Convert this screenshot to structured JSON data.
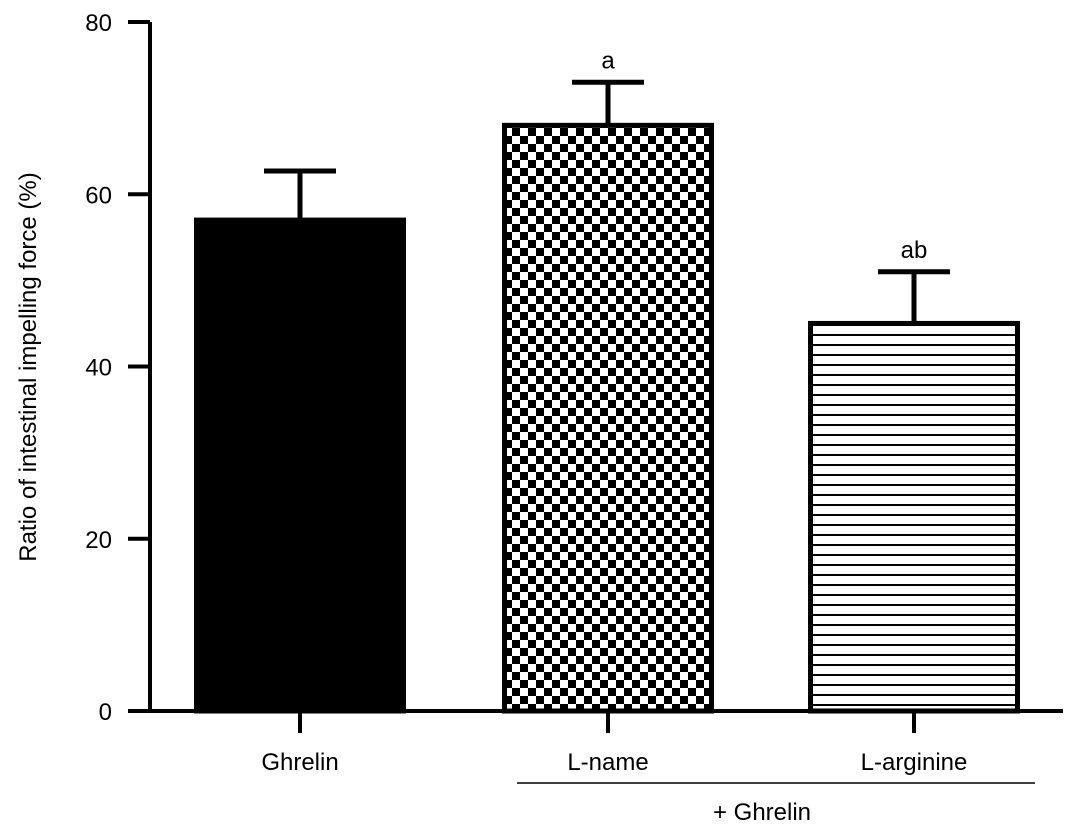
{
  "chart_data": {
    "type": "bar",
    "title": "",
    "xlabel": "",
    "ylabel": "Ratio of intestinal impelling force (%)",
    "ylim": [
      0,
      80
    ],
    "yticks": [
      0,
      20,
      40,
      60,
      80
    ],
    "categories": [
      "Ghrelin",
      "L-name",
      "L-arginine"
    ],
    "values": [
      57,
      68,
      45
    ],
    "error_upper": [
      5.7,
      5,
      6
    ],
    "annotations": [
      "",
      "a",
      "ab"
    ],
    "fill_patterns": [
      "solid-black",
      "checkerboard",
      "horizontal-lines"
    ],
    "group_label": "+ Ghrelin",
    "group_spans_categories": [
      "L-name",
      "L-arginine"
    ],
    "grid": false,
    "legend": "none"
  }
}
